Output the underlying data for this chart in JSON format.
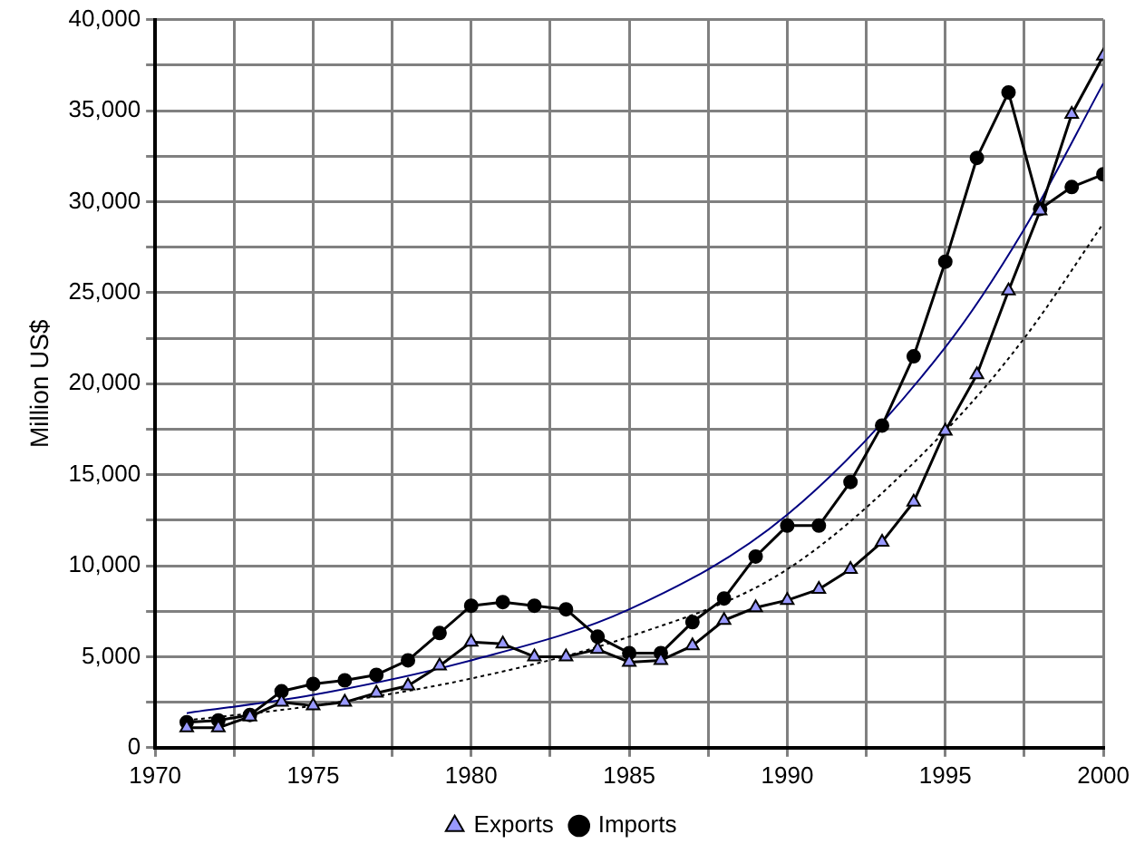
{
  "chart_data": {
    "type": "line",
    "ylabel": "Million US$",
    "xlim": [
      1970,
      2000
    ],
    "xticks": [
      1970,
      {
        "value": 1972.5,
        "label": null
      },
      1975,
      {
        "value": 1977.5,
        "label": null
      },
      1980,
      {
        "value": 1982.5,
        "label": null
      },
      1985,
      {
        "value": 1987.5,
        "label": null
      },
      1990,
      {
        "value": 1992.5,
        "label": null
      },
      1995,
      {
        "value": 1997.5,
        "label": null
      },
      2000
    ],
    "ylim": [
      0,
      40000
    ],
    "yticks": [
      0,
      {
        "value": 2500,
        "label": null
      },
      {
        "value": 5000,
        "label": "5,000"
      },
      {
        "value": 7500,
        "label": null
      },
      {
        "value": 10000,
        "label": "10,000"
      },
      {
        "value": 12500,
        "label": null
      },
      {
        "value": 15000,
        "label": "15,000"
      },
      {
        "value": 17500,
        "label": null
      },
      {
        "value": 20000,
        "label": "20,000"
      },
      {
        "value": 22500,
        "label": null
      },
      {
        "value": 25000,
        "label": "25,000"
      },
      {
        "value": 27500,
        "label": null
      },
      {
        "value": 30000,
        "label": "30,000"
      },
      {
        "value": 32500,
        "label": null
      },
      {
        "value": 35000,
        "label": "35,000"
      },
      {
        "value": 37500,
        "label": null
      },
      {
        "value": 40000,
        "label": "40,000"
      }
    ],
    "grid": true,
    "legend": "bottom",
    "x": [
      1971,
      1972,
      1973,
      1974,
      1975,
      1976,
      1977,
      1978,
      1979,
      1980,
      1981,
      1982,
      1983,
      1984,
      1985,
      1986,
      1987,
      1988,
      1989,
      1990,
      1991,
      1992,
      1993,
      1994,
      1995,
      1996,
      1997,
      1998,
      1999,
      2000
    ],
    "series": [
      {
        "name": "Exports",
        "color": "#000000",
        "marker": "triangle",
        "values": [
          1100,
          1100,
          1700,
          2500,
          2300,
          2500,
          3000,
          3400,
          4500,
          5800,
          5700,
          5000,
          5000,
          5400,
          4700,
          4800,
          5600,
          7000,
          7700,
          8100,
          8700,
          9800,
          11300,
          13500,
          17400,
          20500,
          25100,
          29500,
          34800,
          38000
        ]
      },
      {
        "name": "Imports",
        "color": "#000000",
        "marker": "circle",
        "values": [
          1400,
          1500,
          1800,
          3100,
          3500,
          3700,
          4000,
          4800,
          6300,
          7800,
          8000,
          7800,
          7600,
          6100,
          5200,
          5200,
          6900,
          8200,
          10500,
          12200,
          12200,
          14600,
          17700,
          21500,
          26700,
          32400,
          36000,
          29600,
          30800,
          31500
        ]
      },
      {
        "type": "line",
        "color": "#000080",
        "marker": "none",
        "x": [
          1971,
          1975,
          1980,
          1985,
          1990,
          1995,
          1997.5,
          2000
        ],
        "values": [
          1900,
          2900,
          4800,
          7600,
          12800,
          22000,
          28500,
          36500
        ]
      },
      {
        "type": "line",
        "color": "#000000",
        "marker": "none",
        "line_style": "dotted",
        "x": [
          1971,
          1975,
          1980,
          1985,
          1990,
          1995,
          1997.5,
          2000
        ],
        "values": [
          1500,
          2300,
          3800,
          6100,
          9800,
          17400,
          22500,
          28800
        ]
      }
    ]
  }
}
